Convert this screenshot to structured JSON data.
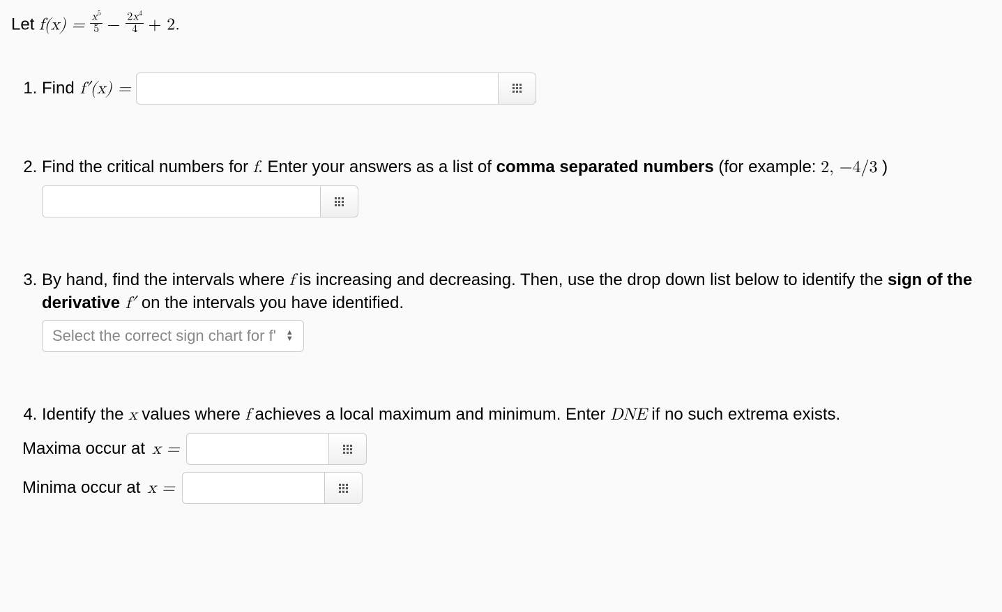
{
  "prompt": {
    "prefix": "Let ",
    "fn": "f(x) = ",
    "term1_num": "x",
    "term1_num_exp": "5",
    "term1_den": "5",
    "minus": " − ",
    "term2_num_coef": "2",
    "term2_num_var": "x",
    "term2_num_exp": "4",
    "term2_den": "4",
    "tail": " + 2."
  },
  "q1": {
    "label_pre": "Find ",
    "fprime": "f′(x) = "
  },
  "q2": {
    "text_a": "Find the critical numbers for ",
    "f": "f",
    "text_b": ". Enter your answers as a list of ",
    "bold": "comma separated numbers",
    "text_c": " (for example: ",
    "example": "2, −4/3",
    "text_d": " )"
  },
  "q3": {
    "text_a": "By hand, find the intervals where ",
    "f": "f",
    "text_b": " is increasing and decreasing. Then, use the drop down list below to identify the ",
    "bold": "sign of the derivative",
    "fprime": " f′ ",
    "text_c": "on the intervals you have identified.",
    "select_placeholder": "Select the correct sign chart for f'"
  },
  "q4": {
    "text_a": "Identify the ",
    "x": "x",
    "text_b": " values where ",
    "f": "f",
    "text_c": " achieves a local maximum and minimum. Enter ",
    "dne": "DNE",
    "text_d": " if no such extrema exists.",
    "maxima_label": "Maxima occur at ",
    "minima_label": "Minima occur at ",
    "x_eq": "x = "
  }
}
